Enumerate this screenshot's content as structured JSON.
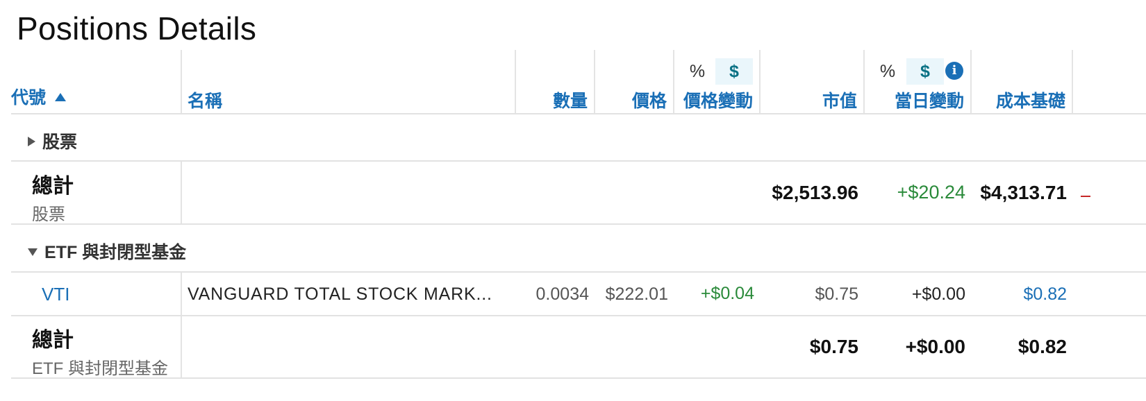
{
  "page_title": "Positions Details",
  "headers": {
    "symbol": "代號",
    "name": "名稱",
    "quantity": "數量",
    "price": "價格",
    "price_change": "價格變動",
    "market_value": "市值",
    "day_change": "當日變動",
    "cost_basis": "成本基礎",
    "toggle_pct": "%",
    "toggle_usd": "$",
    "info": "i"
  },
  "groups": {
    "stocks": {
      "label": "股票",
      "total_label": "總計",
      "total_sub": "股票",
      "market_value": "$2,513.96",
      "day_change": "+$20.24",
      "cost_basis": "$4,313.71"
    },
    "etf": {
      "label": "ETF 與封閉型基金",
      "total_label": "總計",
      "total_sub": "ETF 與封閉型基金",
      "market_value": "$0.75",
      "day_change": "+$0.00",
      "cost_basis": "$0.82"
    }
  },
  "rows": [
    {
      "symbol": "VTI",
      "name": "VANGUARD TOTAL STOCK MARK...",
      "quantity": "0.0034",
      "price": "$222.01",
      "price_change": "+$0.04",
      "market_value": "$0.75",
      "day_change": "+$0.00",
      "cost_basis": "$0.82"
    }
  ],
  "colors": {
    "header_link": "#1a6fb6",
    "positive": "#2a8a3a",
    "negative": "#c62828"
  }
}
